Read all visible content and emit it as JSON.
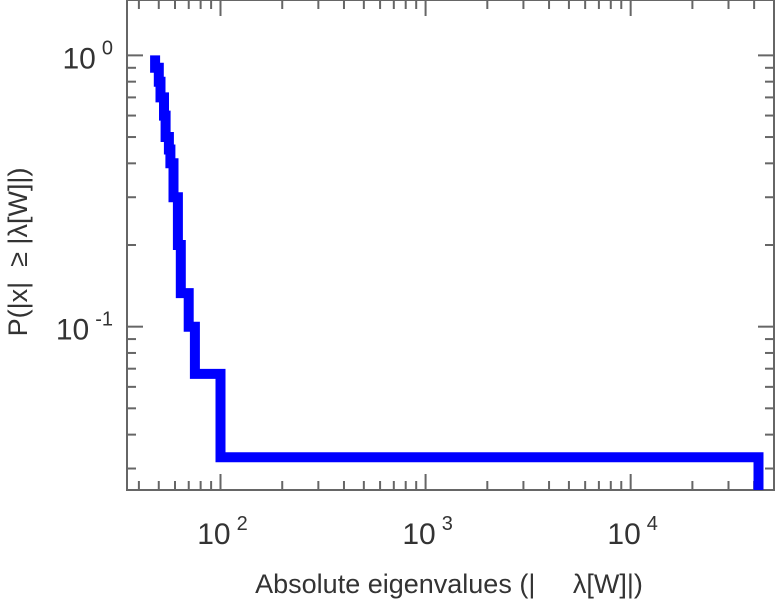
{
  "chart_data": {
    "type": "line",
    "title": "",
    "xlabel": "Absolute eigenvalues (|     λ[W]|)",
    "ylabel": "P(|x|  ≥ |λ[W]|)",
    "xscale": "log",
    "yscale": "log",
    "xlim": [
      35,
      50000
    ],
    "ylim": [
      0.025,
      1.6
    ],
    "grid": false,
    "legend": "none",
    "x_ticks": [
      {
        "base": "10",
        "exp": "2"
      },
      {
        "base": "10",
        "exp": "3"
      },
      {
        "base": "10",
        "exp": "4"
      }
    ],
    "y_ticks": [
      {
        "base": "10",
        "exp": "0"
      },
      {
        "base": "10",
        "exp": "-1"
      }
    ],
    "series": [
      {
        "color": "#0000ff",
        "step": true,
        "points": [
          [
            48,
            1.0
          ],
          [
            48,
            0.9
          ],
          [
            50,
            0.9
          ],
          [
            50,
            0.8
          ],
          [
            51,
            0.8
          ],
          [
            51,
            0.7
          ],
          [
            53,
            0.7
          ],
          [
            53,
            0.6
          ],
          [
            54,
            0.6
          ],
          [
            54,
            0.5
          ],
          [
            56,
            0.5
          ],
          [
            56,
            0.45
          ],
          [
            57,
            0.45
          ],
          [
            57,
            0.4
          ],
          [
            59,
            0.4
          ],
          [
            59,
            0.3
          ],
          [
            62,
            0.3
          ],
          [
            62,
            0.2
          ],
          [
            64,
            0.2
          ],
          [
            64,
            0.133
          ],
          [
            70,
            0.133
          ],
          [
            70,
            0.1
          ],
          [
            75,
            0.1
          ],
          [
            75,
            0.067
          ],
          [
            100,
            0.067
          ],
          [
            100,
            0.033
          ],
          [
            42000,
            0.033
          ],
          [
            42000,
            0.025
          ]
        ]
      }
    ]
  }
}
